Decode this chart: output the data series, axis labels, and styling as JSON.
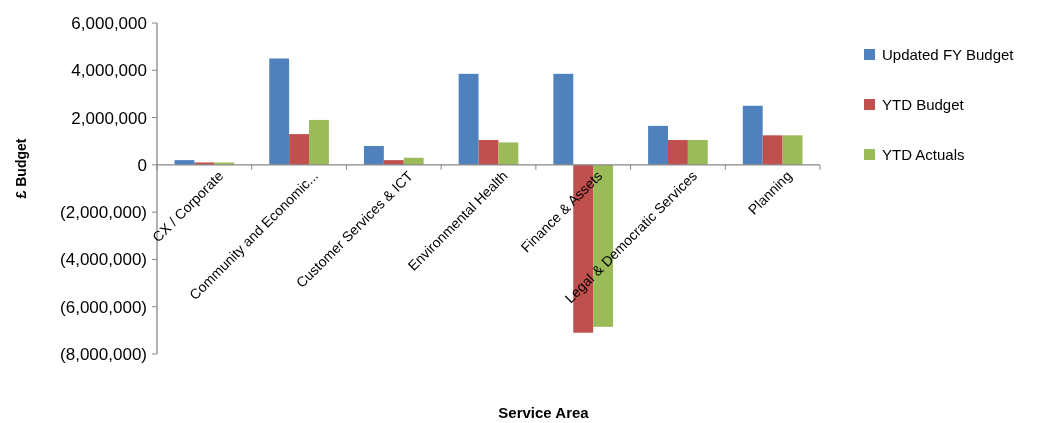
{
  "chart_data": {
    "type": "bar",
    "xlabel": "Service Area",
    "ylabel": "£ Budget",
    "categories": [
      "CX / Corporate",
      "Community and Economic...",
      "Customer Services & ICT",
      "Environmental Health",
      "Finance & Assets",
      "Legal & Democratic Services",
      "Planning"
    ],
    "series": [
      {
        "name": "Updated FY  Budget",
        "color": "#4f81bd",
        "values": [
          200000,
          4500000,
          800000,
          3850000,
          3850000,
          1650000,
          2500000
        ]
      },
      {
        "name": "YTD Budget",
        "color": "#c0504d",
        "values": [
          100000,
          1300000,
          200000,
          1050000,
          -7100000,
          1050000,
          1250000
        ]
      },
      {
        "name": "YTD Actuals",
        "color": "#9bbb59",
        "values": [
          100000,
          1900000,
          300000,
          950000,
          -6850000,
          1050000,
          1250000
        ]
      }
    ],
    "ylim": [
      -8000000,
      6000000
    ],
    "yticks": [
      {
        "value": -8000000,
        "label": "(8,000,000)"
      },
      {
        "value": -6000000,
        "label": "(6,000,000)"
      },
      {
        "value": -4000000,
        "label": "(4,000,000)"
      },
      {
        "value": -2000000,
        "label": "(2,000,000)"
      },
      0,
      {
        "value": 2000000,
        "label": "2,000,000"
      },
      {
        "value": 4000000,
        "label": "4,000,000"
      },
      {
        "value": 6000000,
        "label": "6,000,000"
      }
    ],
    "grid": false,
    "legend": "right"
  }
}
